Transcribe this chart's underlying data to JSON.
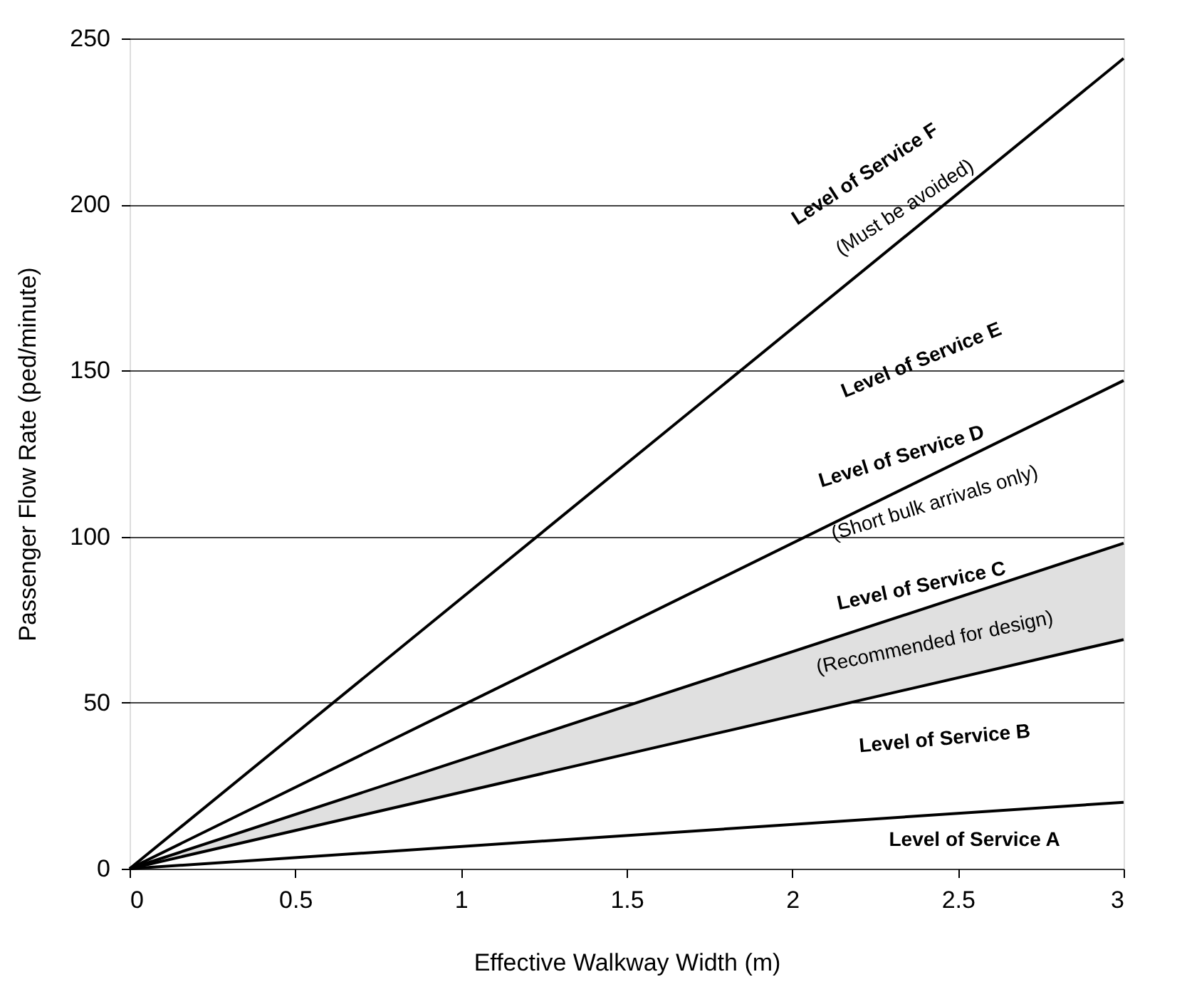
{
  "chart_data": {
    "type": "line",
    "xlabel": "Effective Walkway Width (m)",
    "ylabel": "Passenger Flow Rate (ped/minute)",
    "x": [
      0,
      3
    ],
    "series": [
      {
        "color": "#000000",
        "values": [
          0,
          20
        ]
      },
      {
        "color": "#000000",
        "values": [
          0,
          69
        ]
      },
      {
        "color": "#000000",
        "values": [
          0,
          98
        ],
        "lower": [
          0,
          69
        ],
        "upper": [
          0,
          98
        ]
      },
      {
        "color": "#000000",
        "values": [
          0,
          147
        ]
      },
      {
        "color": "#000000",
        "values": [
          0,
          244
        ]
      }
    ],
    "xlim": [
      0,
      3
    ],
    "xticks": [
      0,
      0.5,
      1,
      1.5,
      2,
      2.5,
      3
    ],
    "ylim": [
      0,
      250
    ],
    "yticks": [
      0,
      50,
      100,
      150,
      200,
      250
    ],
    "grid": "y",
    "marker": "none",
    "line_style": "solid",
    "annotations": [
      "Level of Service F",
      "(Must be avoided)",
      "Level of Service E",
      "Level of Service D",
      "(Short bulk arrivals only)",
      "Level of Service C",
      "(Recommended for design)",
      "Level of Service B",
      "Level of Service A"
    ]
  }
}
